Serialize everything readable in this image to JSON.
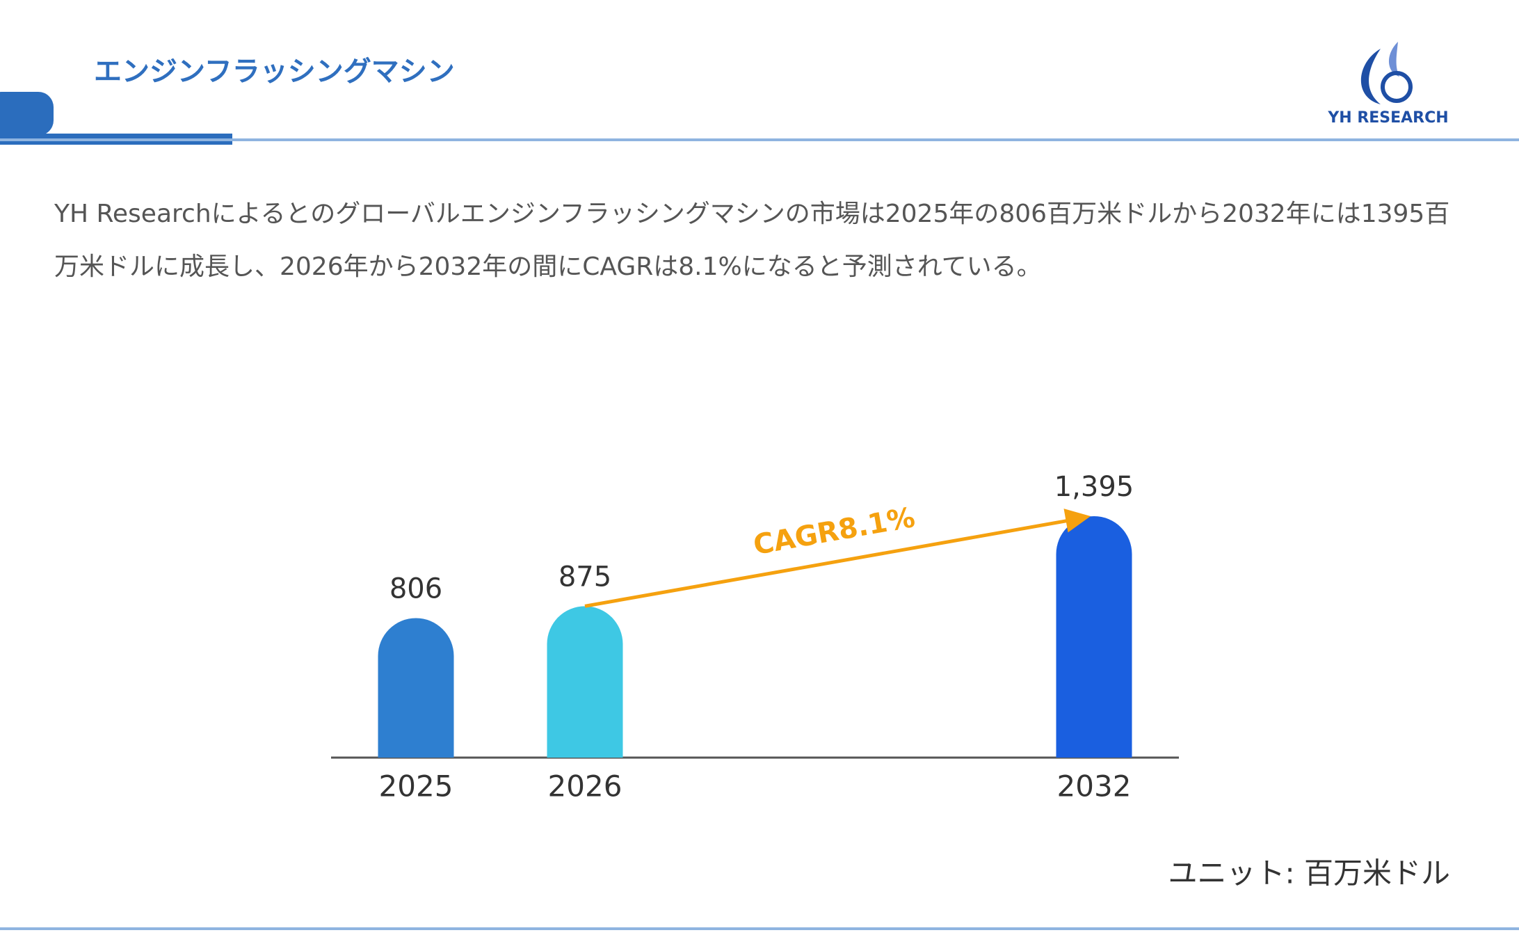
{
  "header": {
    "title": "エンジンフラッシングマシン",
    "logo_text": "YH RESEARCH"
  },
  "description": "YH Researchによるとのグローバルエンジンフラッシングマシンの市場は2025年の806百万米ドルから2032年には1395百万米ドルに成長し、2026年から2032年の間にCAGRは8.1%になると予測されている。",
  "chart_data": {
    "type": "bar",
    "categories": [
      "2025",
      "2026",
      "2032"
    ],
    "values": [
      806,
      875,
      1395
    ],
    "value_labels": [
      "806",
      "875",
      "1,395"
    ],
    "colors": [
      "#2e7fd0",
      "#3ec8e4",
      "#1a5fe0"
    ],
    "annotation": "CAGR8.1%",
    "annotation_color": "#f5a10f",
    "unit_label": "ユニット: 百万米ドル"
  }
}
